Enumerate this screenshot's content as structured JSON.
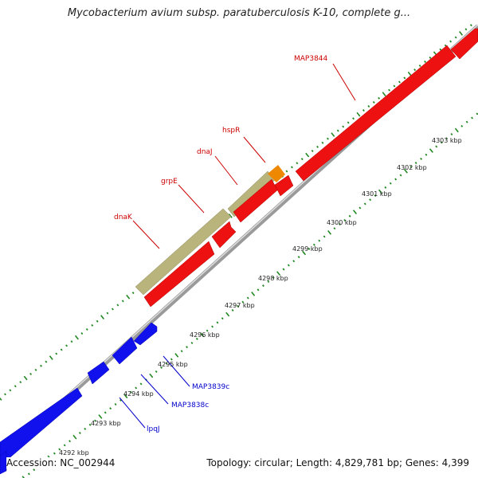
{
  "title": "Mycobacterium avium subsp. paratuberculosis K-10, complete g...",
  "footer": {
    "accession": "Accession: NC_002944",
    "summary": "Topology: circular; Length: 4,829,781 bp; Genes: 4,399"
  },
  "colors": {
    "forward_gene": "#ee1111",
    "reverse_gene": "#1111ee",
    "highlight_gene": "#b8b47c",
    "small_gene": "#ee8800",
    "ruler": "#228822",
    "backbone": "#9a9a9a",
    "label_forward": "#cc0000",
    "label_reverse": "#0000cc"
  },
  "genes": [
    {
      "name": "dnaK",
      "strand": "forward"
    },
    {
      "name": "grpE",
      "strand": "forward"
    },
    {
      "name": "dnaJ",
      "strand": "forward"
    },
    {
      "name": "hspR",
      "strand": "forward"
    },
    {
      "name": "MAP3844",
      "strand": "forward"
    },
    {
      "name": "lpqJ",
      "strand": "reverse"
    },
    {
      "name": "MAP3838c",
      "strand": "reverse"
    },
    {
      "name": "MAP3839c",
      "strand": "reverse"
    }
  ],
  "kbp_ticks": [
    "4292 kbp",
    "4293 kbp",
    "4294 kbp",
    "4295 kbp",
    "4296 kbp",
    "4297 kbp",
    "4298 kbp",
    "4299 kbp",
    "4300 kbp",
    "4301 kbp",
    "4302 kbp",
    "4303 kbp"
  ]
}
